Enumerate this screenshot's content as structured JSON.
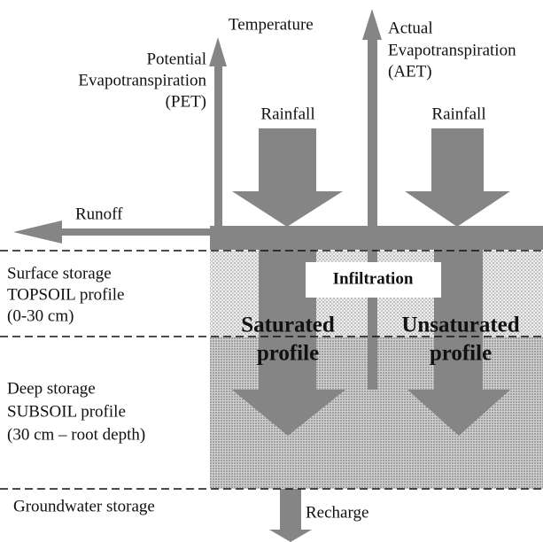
{
  "labels": {
    "temperature": "Temperature",
    "pet": [
      "Potential",
      "Evapotranspiration",
      "(PET)"
    ],
    "aet": [
      "Actual",
      "Evapotranspiration",
      "(AET)"
    ],
    "rainfall_left": "Rainfall",
    "rainfall_right": "Rainfall",
    "runoff": "Runoff",
    "infiltration": "Infiltration",
    "saturated": [
      "Saturated",
      "profile"
    ],
    "unsaturated": [
      "Unsaturated",
      "profile"
    ],
    "surface": [
      "Surface storage",
      "TOPSOIL profile",
      "(0-30 cm)"
    ],
    "deep": [
      "Deep storage",
      "SUBSOIL profile",
      "(30 cm – root depth)"
    ],
    "groundwater": "Groundwater storage",
    "recharge": "Recharge"
  }
}
